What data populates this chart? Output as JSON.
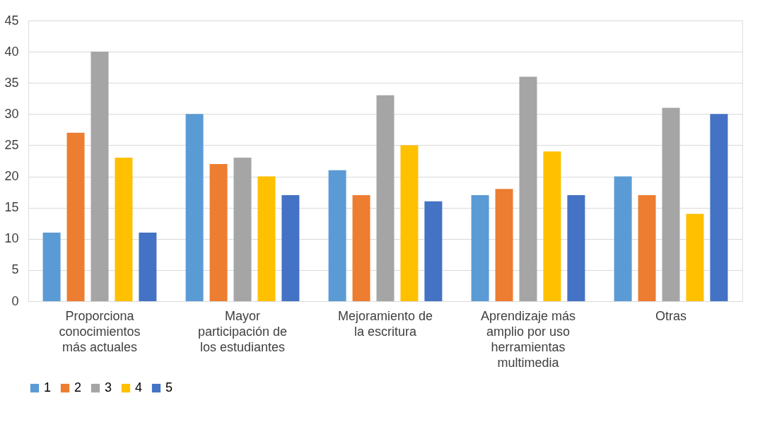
{
  "chart_data": {
    "type": "bar",
    "categories": [
      "Proporciona conocimientos más actuales",
      "Mayor participación de los estudiantes",
      "Mejoramiento de la escritura",
      "Aprendizaje más amplio por uso herramientas multimedia",
      "Otras"
    ],
    "series": [
      {
        "name": "1",
        "color": "#5b9bd5",
        "values": [
          11,
          30,
          21,
          17,
          20
        ]
      },
      {
        "name": "2",
        "color": "#ed7d31",
        "values": [
          27,
          22,
          17,
          18,
          17
        ]
      },
      {
        "name": "3",
        "color": "#a5a5a5",
        "values": [
          40,
          23,
          33,
          36,
          31
        ]
      },
      {
        "name": "4",
        "color": "#ffc000",
        "values": [
          23,
          20,
          25,
          24,
          14
        ]
      },
      {
        "name": "5",
        "color": "#4472c4",
        "values": [
          11,
          17,
          16,
          17,
          30
        ]
      }
    ],
    "ylim": [
      0,
      45
    ],
    "yticks": [
      0,
      5,
      10,
      15,
      20,
      25,
      30,
      35,
      40,
      45
    ],
    "grid": "y",
    "legend": "bottom"
  }
}
